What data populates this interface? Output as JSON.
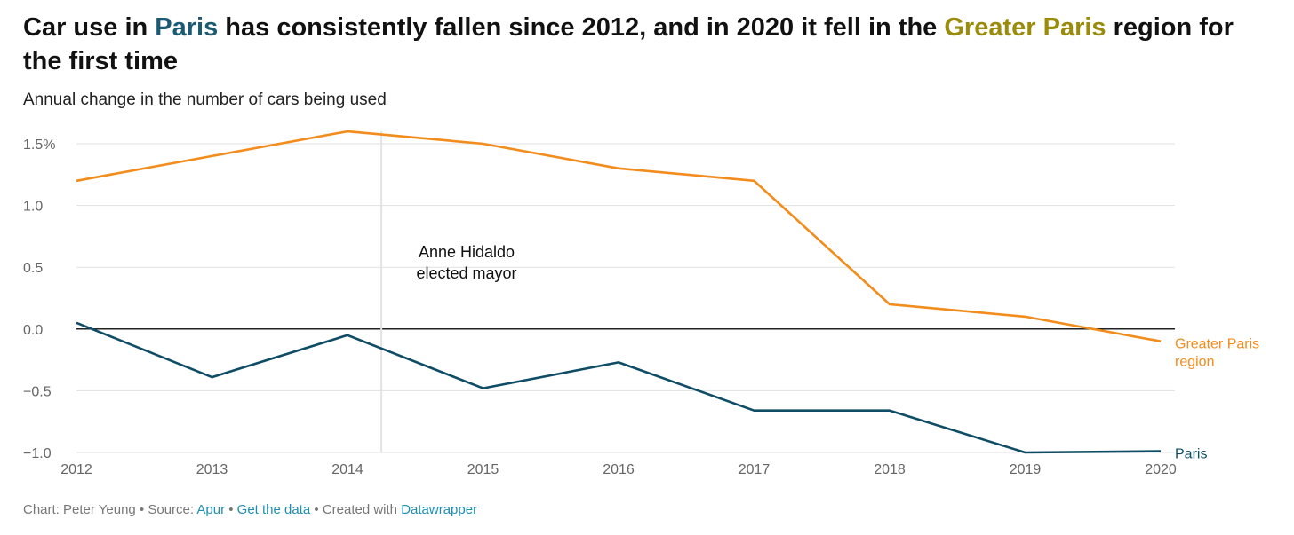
{
  "title": {
    "prefix": "Car use in ",
    "paris": "Paris",
    "middle": " has consistently fallen since 2012, and in 2020 it fell in the ",
    "greater_paris": "Greater Paris",
    "suffix": " region for the first time",
    "paris_color": "#1a5a73",
    "greater_paris_color": "#9a8c0a"
  },
  "subtitle": "Annual change in the number of cars being used",
  "footer": {
    "chart_by": "Chart: Peter Yeung",
    "sep1": " • Source: ",
    "source_link": "Apur",
    "sep2": " • ",
    "data_link": "Get the data",
    "sep3": " • Created with ",
    "tool_link": "Datawrapper"
  },
  "chart_data": {
    "type": "line",
    "x": [
      "2012",
      "2013",
      "2014",
      "2015",
      "2016",
      "2017",
      "2018",
      "2019",
      "2020"
    ],
    "series": [
      {
        "name": "Greater Paris region",
        "label_lines": [
          "Greater Paris",
          "region"
        ],
        "color": "#f28c1c",
        "values": [
          1.2,
          1.4,
          1.6,
          1.5,
          1.3,
          1.2,
          0.2,
          0.1,
          -0.1
        ]
      },
      {
        "name": "Paris",
        "label_lines": [
          "Paris"
        ],
        "color": "#0f4c66",
        "values": [
          0.05,
          -0.39,
          -0.05,
          -0.48,
          -0.27,
          -0.66,
          -0.66,
          -1.0,
          -0.99
        ]
      }
    ],
    "y_ticks": [
      {
        "value": 1.5,
        "label": "1.5%"
      },
      {
        "value": 1.0,
        "label": "1.0"
      },
      {
        "value": 0.5,
        "label": "0.5"
      },
      {
        "value": 0.0,
        "label": "0.0"
      },
      {
        "value": -0.5,
        "label": "−0.5"
      },
      {
        "value": -1.0,
        "label": "−1.0"
      }
    ],
    "ylim": [
      -1.0,
      1.5
    ],
    "grid": true,
    "annotation": {
      "lines": [
        "Anne Hidaldo",
        "elected mayor"
      ],
      "x_year": 2014.25
    }
  }
}
